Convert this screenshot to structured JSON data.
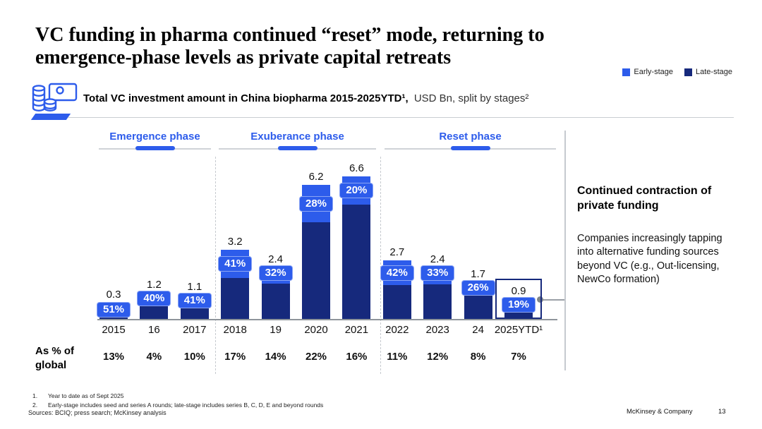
{
  "header": {
    "title_line1": "VC funding in pharma continued “reset” mode, returning to",
    "title_line2": "emergence-phase levels as private capital retreats"
  },
  "legend": [
    {
      "label": "Early-stage",
      "color": "#2d5ceb"
    },
    {
      "label": "Late-stage",
      "color": "#16297c"
    }
  ],
  "subtitle": {
    "bold": "Total VC investment amount in China biopharma 2015-2025YTD¹,",
    "regular": "USD Bn, split by stages²"
  },
  "icon": {
    "name": "coins-and-banknote-icon"
  },
  "row_label": {
    "line1": "As % of",
    "line2": "global"
  },
  "annotation": {
    "heading": "Continued contraction of private funding",
    "body": "Companies increasingly tapping into alternative funding sources beyond VC (e.g., Out-licensing, NewCo formation)"
  },
  "footnotes": [
    {
      "num": "1.",
      "text": "Year to date as of Sept 2025"
    },
    {
      "num": "2.",
      "text": "Early-stage includes seed and series A rounds; late-stage includes series B, C, D, E and beyond rounds"
    }
  ],
  "sources": "Sources: BCIQ; press search; McKinsey analysis",
  "footer": {
    "company": "McKinsey & Company",
    "page": "13"
  },
  "colors": {
    "early_stage": "#2d5ceb",
    "late_stage": "#16297c",
    "phase_text": "#2d5ceb",
    "gridline": "#c6cacf",
    "axis": "#8f959b"
  },
  "chart_data": {
    "type": "bar",
    "stacked": true,
    "unit": "USD Bn",
    "categories": [
      "2015",
      "16",
      "2017",
      "2018",
      "19",
      "2020",
      "2021",
      "2022",
      "2023",
      "24",
      "2025YTD¹"
    ],
    "totals": [
      0.3,
      1.2,
      1.1,
      3.2,
      2.4,
      6.2,
      6.6,
      2.7,
      2.4,
      1.7,
      0.9
    ],
    "series": [
      {
        "name": "Early-stage",
        "share_pct": [
          51,
          40,
          41,
          41,
          32,
          28,
          20,
          42,
          33,
          26,
          19
        ]
      },
      {
        "name": "Late-stage",
        "share_pct": [
          49,
          60,
          59,
          59,
          68,
          72,
          80,
          58,
          67,
          74,
          81
        ]
      }
    ],
    "share_labels": [
      "51%",
      "40%",
      "41%",
      "41%",
      "32%",
      "28%",
      "20%",
      "42%",
      "33%",
      "26%",
      "19%"
    ],
    "as_pct_of_global": [
      "13%",
      "4%",
      "10%",
      "17%",
      "14%",
      "22%",
      "16%",
      "11%",
      "12%",
      "8%",
      "7%"
    ],
    "phases": [
      {
        "label": "Emergence phase",
        "columns": [
          "2015",
          "16",
          "2017"
        ]
      },
      {
        "label": "Exuberance phase",
        "columns": [
          "2018",
          "19",
          "2020",
          "2021"
        ]
      },
      {
        "label": "Reset phase",
        "columns": [
          "2022",
          "2023",
          "24",
          "2025YTD¹"
        ]
      }
    ],
    "highlight_index": 10,
    "ylim": [
      0,
      7
    ],
    "grid": false,
    "legend_position": "top-right"
  }
}
